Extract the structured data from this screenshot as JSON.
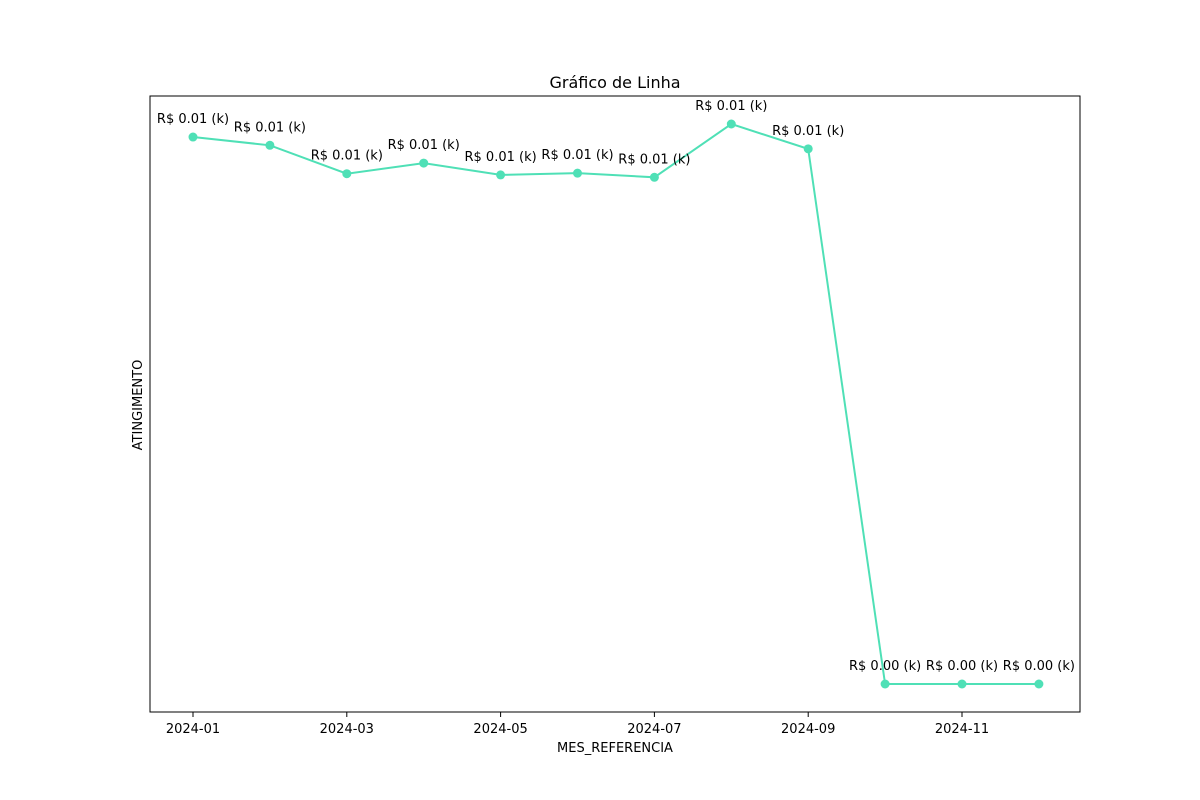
{
  "chart_data": {
    "type": "line",
    "title": "Gráfico de Linha",
    "xlabel": "MES_REFERENCIA",
    "ylabel": "ATINGIMENTO",
    "x": [
      "2024-01",
      "2024-02",
      "2024-03",
      "2024-04",
      "2024-05",
      "2024-06",
      "2024-07",
      "2024-08",
      "2024-09",
      "2024-10",
      "2024-11",
      "2024-12"
    ],
    "x_ticks": [
      "2024-01",
      "2024-03",
      "2024-05",
      "2024-07",
      "2024-09",
      "2024-11"
    ],
    "y_ticks_visible": false,
    "series": [
      {
        "color": "#4fe0b6",
        "values": [
          0.00926,
          0.00912,
          0.00864,
          0.00882,
          0.00862,
          0.00865,
          0.00858,
          0.00948,
          0.00906,
          2e-05,
          2e-05,
          2e-05
        ],
        "labels": [
          "R$ 0.01 (k)",
          "R$ 0.01 (k)",
          "R$ 0.01 (k)",
          "R$ 0.01 (k)",
          "R$ 0.01 (k)",
          "R$ 0.01 (k)",
          "R$ 0.01 (k)",
          "R$ 0.01 (k)",
          "R$ 0.01 (k)",
          "R$ 0.00 (k)",
          "R$ 0.00 (k)",
          "R$ 0.00 (k)"
        ]
      }
    ],
    "grid": false,
    "legend": "none"
  }
}
